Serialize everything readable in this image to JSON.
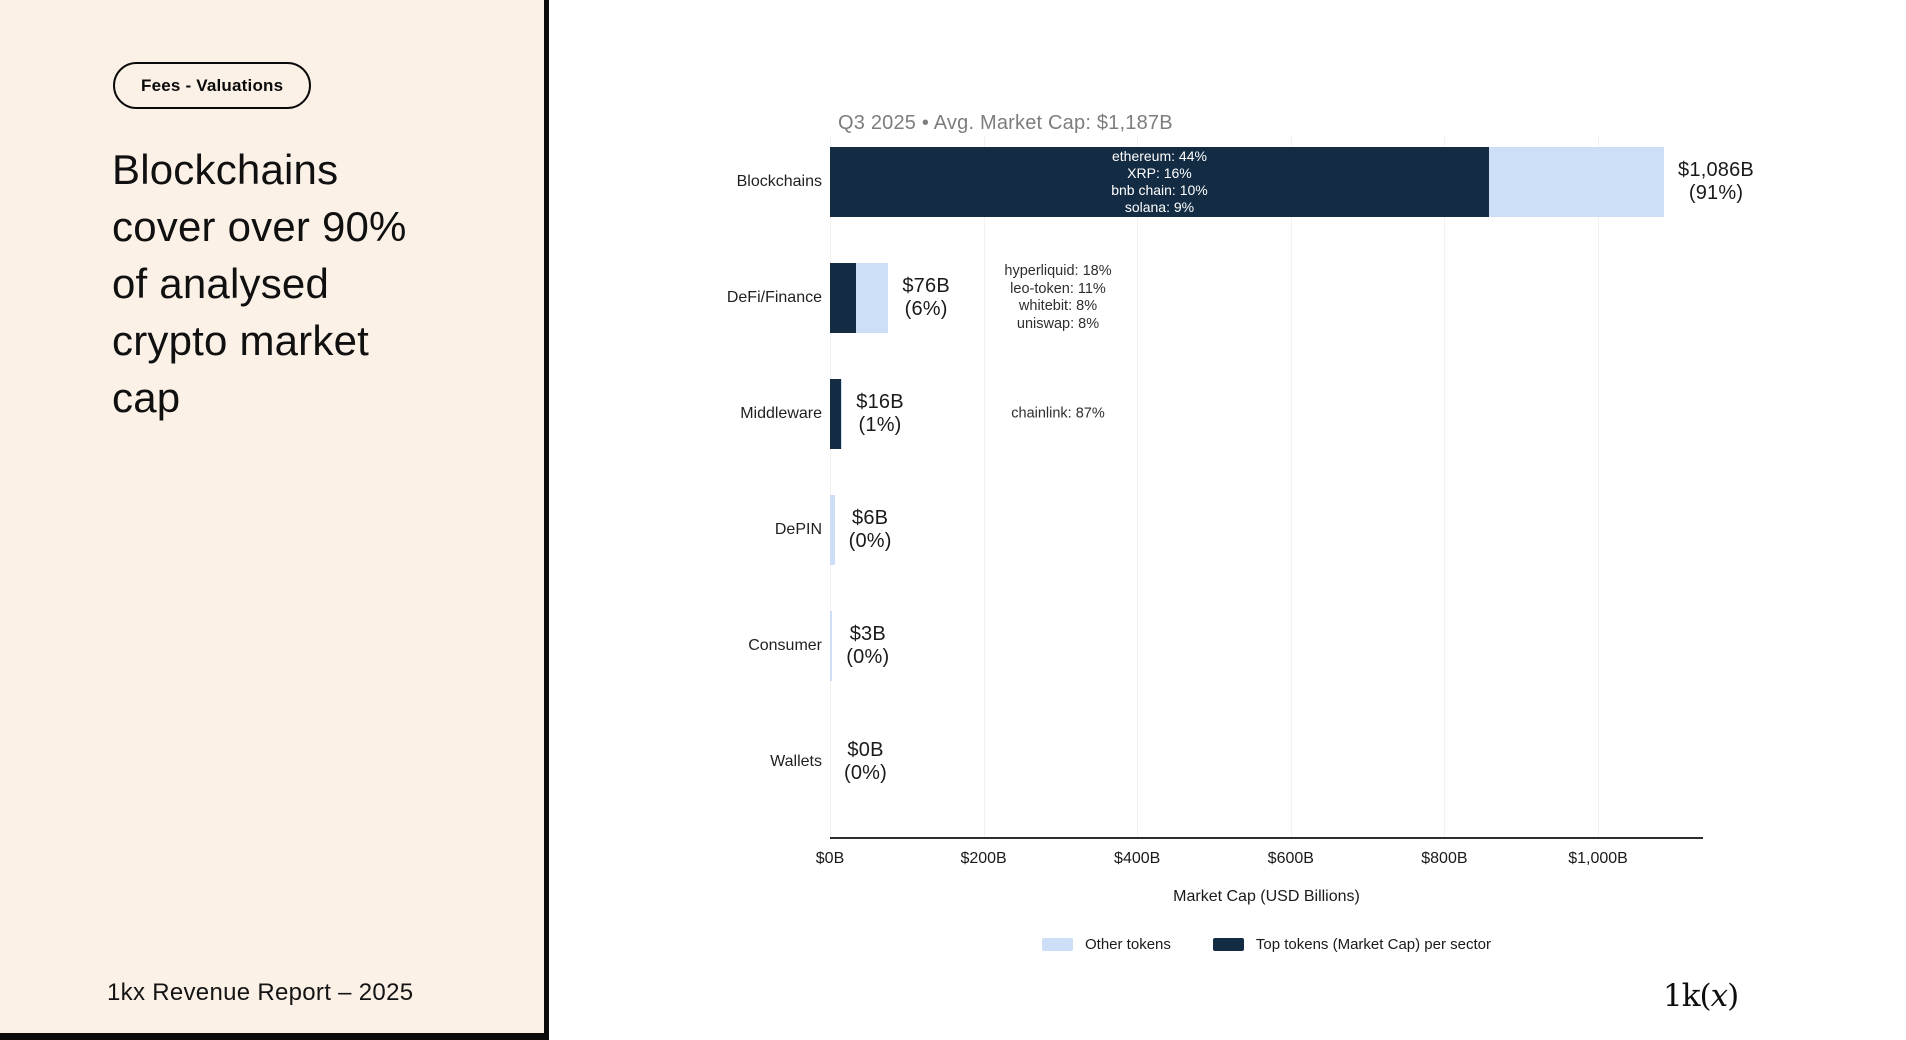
{
  "slide": {
    "badge_label": "Fees - Valuations",
    "title_lines": [
      "Blockchains",
      "cover over 90%",
      "of analysed",
      "crypto market",
      "cap"
    ],
    "footer_text": "1kx Revenue Report  – 2025",
    "logo": {
      "prefix": "1k(",
      "x": "x",
      "suffix": ")"
    }
  },
  "colors": {
    "panel_bg": "#FCF1E7",
    "top_tokens": "#132B43",
    "other_tokens": "#CCDFF6",
    "chart_title_gray": "#7D7D7D"
  },
  "chart_data": {
    "type": "bar",
    "orientation": "horizontal",
    "title": "Q3 2025 • Avg. Market Cap: $1,187B",
    "xlabel": "Market Cap (USD Billions)",
    "xlim": [
      0,
      1137
    ],
    "grid": true,
    "legend_position": "bottom",
    "xticks": [
      {
        "value": 0,
        "label": "$0B"
      },
      {
        "value": 200,
        "label": "$200B"
      },
      {
        "value": 400,
        "label": "$400B"
      },
      {
        "value": 600,
        "label": "$600B"
      },
      {
        "value": 800,
        "label": "$800B"
      },
      {
        "value": 1000,
        "label": "$1,000B"
      }
    ],
    "legend": [
      {
        "label": "Other tokens",
        "color_key": "other_tokens"
      },
      {
        "label": "Top tokens (Market Cap) per sector",
        "color_key": "top_tokens"
      }
    ],
    "categories": [
      "Blockchains",
      "DeFi/Finance",
      "Middleware",
      "DePIN",
      "Consumer",
      "Wallets"
    ],
    "rows": [
      {
        "sector": "Blockchains",
        "total_usd_b": 1086,
        "top_tokens_usd_b": 858,
        "value_label": "$1,086B",
        "share_label": "(91%)",
        "bar_text_lines": [
          "ethereum: 44%",
          "XRP: 16%",
          "bnb chain: 10%",
          "solana: 9%"
        ],
        "annotation_lines": []
      },
      {
        "sector": "DeFi/Finance",
        "total_usd_b": 76,
        "top_tokens_usd_b": 34,
        "value_label": "$76B",
        "share_label": "(6%)",
        "bar_text_lines": [],
        "annotation_lines": [
          "hyperliquid: 18%",
          "leo-token: 11%",
          "whitebit: 8%",
          "uniswap: 8%"
        ]
      },
      {
        "sector": "Middleware",
        "total_usd_b": 16,
        "top_tokens_usd_b": 14,
        "value_label": "$16B",
        "share_label": "(1%)",
        "bar_text_lines": [],
        "annotation_lines": [
          "chainlink: 87%"
        ]
      },
      {
        "sector": "DePIN",
        "total_usd_b": 6,
        "top_tokens_usd_b": 0,
        "value_label": "$6B",
        "share_label": "(0%)",
        "bar_text_lines": [],
        "annotation_lines": []
      },
      {
        "sector": "Consumer",
        "total_usd_b": 3,
        "top_tokens_usd_b": 0,
        "value_label": "$3B",
        "share_label": "(0%)",
        "bar_text_lines": [],
        "annotation_lines": []
      },
      {
        "sector": "Wallets",
        "total_usd_b": 0,
        "top_tokens_usd_b": 0,
        "value_label": "$0B",
        "share_label": "(0%)",
        "bar_text_lines": [],
        "annotation_lines": []
      }
    ]
  }
}
